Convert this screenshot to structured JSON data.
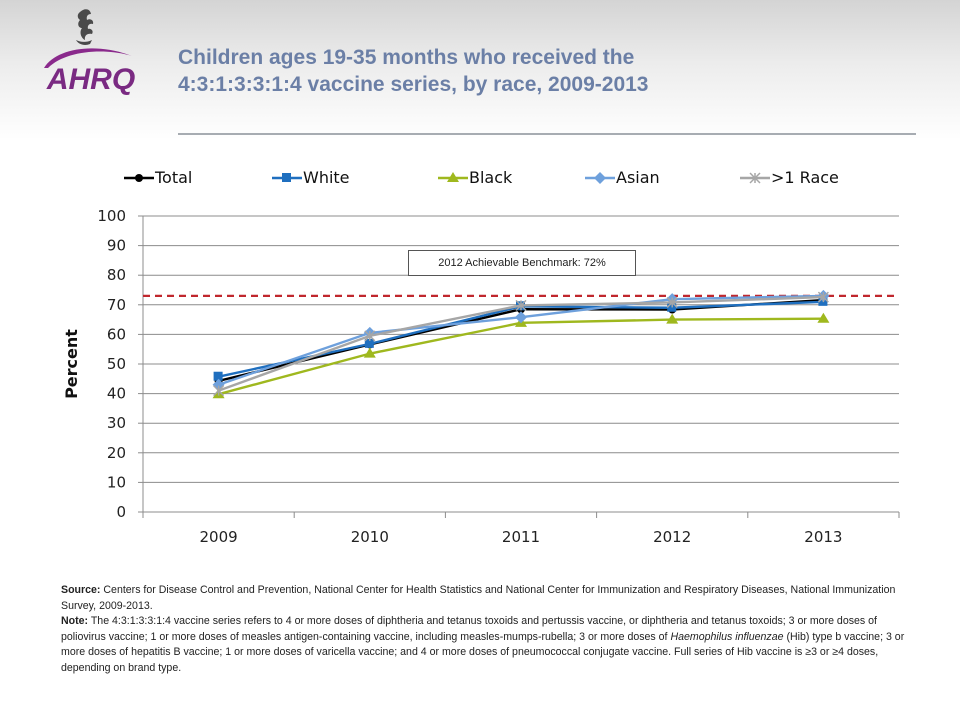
{
  "header": {
    "logo_text": "AHRQ",
    "title_line1": "Children ages 19-35 months who received the",
    "title_line2": "4:3:1:3:3:1:4 vaccine series, by race, 2009-2013"
  },
  "chart_data": {
    "type": "line",
    "title": "Children ages 19-35 months who received the 4:3:1:3:3:1:4 vaccine series, by race, 2009-2013",
    "xlabel": "",
    "ylabel": "Percent",
    "ylim": [
      0,
      100
    ],
    "yticks": [
      0,
      10,
      20,
      30,
      40,
      50,
      60,
      70,
      80,
      90,
      100
    ],
    "categories": [
      "2009",
      "2010",
      "2011",
      "2012",
      "2013"
    ],
    "legend_position": "top",
    "grid": true,
    "series": [
      {
        "name": "Total",
        "color": "#000000",
        "marker": "circle",
        "values": [
          44.3,
          56.6,
          68.5,
          68.4,
          71.6
        ]
      },
      {
        "name": "White",
        "color": "#1f6fbf",
        "marker": "square",
        "values": [
          45.7,
          56.8,
          69.5,
          69.0,
          71.0
        ]
      },
      {
        "name": "Black",
        "color": "#9fb81e",
        "marker": "triangle",
        "values": [
          39.8,
          53.5,
          63.9,
          65.0,
          65.3
        ]
      },
      {
        "name": "Asian",
        "color": "#6ea0dc",
        "marker": "diamond",
        "values": [
          43.0,
          60.5,
          65.8,
          71.9,
          73.0
        ]
      },
      {
        "name": ">1 Race",
        "color": "#a6a6a6",
        "marker": "x",
        "values": [
          41.0,
          59.5,
          69.8,
          70.8,
          72.6
        ]
      }
    ],
    "benchmark": {
      "value": 72,
      "label": "2012 Achievable Benchmark: 72%",
      "color": "#c0272d",
      "style": "dashed"
    }
  },
  "notes": {
    "source_label": "Source:",
    "source_text": " Centers for Disease Control and Prevention, National Center for Health Statistics and National Center for Immunization and Respiratory Diseases, National Immunization Survey, 2009-2013.",
    "note_label": "Note:",
    "note_text_1": " The 4:3:1:3:3:1:4 vaccine series refers to 4 or more doses of diphtheria and tetanus toxoids and pertussis vaccine, or diphtheria and tetanus toxoids; 3 or more doses of poliovirus vaccine; 1 or more doses of measles antigen-containing vaccine, including measles-mumps-rubella; 3 or more doses of ",
    "note_italic": "Haemophilus influenzae",
    "note_text_2": " (Hib) type b vaccine; 3 or more doses of hepatitis B vaccine; 1 or more doses of varicella vaccine; and 4 or more doses of pneumococcal conjugate vaccine. Full series of Hib vaccine is ≥3 or ≥4 doses, depending on brand type."
  }
}
